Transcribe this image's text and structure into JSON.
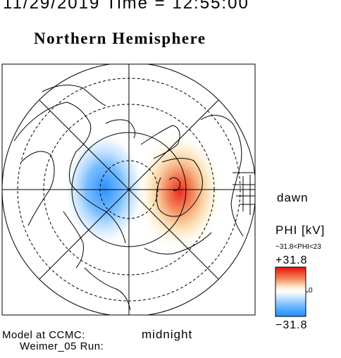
{
  "header": {
    "timestamp": "11/29/2019 Time = 12:55:00",
    "hemisphere": "Northern Hemisphere"
  },
  "map": {
    "projection": "polar (north pole at center)",
    "orientation": {
      "right": "dawn",
      "bottom": "midnight"
    },
    "coastlines": true,
    "latitude_circles": "dashed",
    "features": [
      {
        "name": "negative-phi-cell",
        "sign": "negative",
        "color": "#3399ff",
        "side": "dusk/left"
      },
      {
        "name": "positive-phi-cell",
        "sign": "positive",
        "color": "#e83820",
        "side": "dawn/right"
      }
    ]
  },
  "labels": {
    "dawn": "dawn",
    "midnight": "midnight"
  },
  "colorbar": {
    "title": "PHI [kV]",
    "range_label": "−31.8<PHI<23",
    "max_label": "+31.8",
    "zero_label": "0",
    "min_label": "−31.8",
    "colors": {
      "max": "#e81010",
      "mid": "#ffffff",
      "min": "#1e90ff"
    }
  },
  "footer": {
    "model_line": "Model at CCMC:",
    "run_line": "Weimer_05 Run:"
  }
}
